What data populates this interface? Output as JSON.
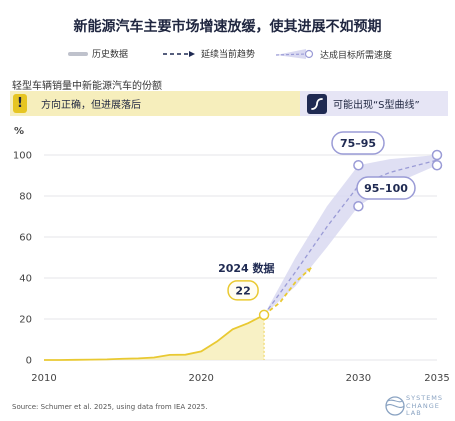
{
  "header": {
    "title": "新能源汽车主要市场增速放缓，使其进展不如预期"
  },
  "legend": {
    "historical": "历史数据",
    "trend": "延续当前趋势",
    "required": "达成目标所需速度"
  },
  "subtitle": "轻型车辆销量中新能源汽车的份额",
  "banners": {
    "left_icon": "!",
    "left_text": "方向正确，但进展落后",
    "right_text": "可能出现“S型曲线”",
    "right_icon": "s-curve-icon"
  },
  "annotations": {
    "data_year_label": "2024 数据",
    "data_value_label": "22",
    "range_2030": "75–95",
    "range_2035": "95–100"
  },
  "footer": {
    "source": "Source: Schumer et al. 2025, using data from IEA 2025.",
    "logo_lines": [
      "SYSTEMS",
      "CHANGE",
      "LAB"
    ]
  },
  "colors": {
    "historical": "#e9c932",
    "trend": "#9a9bd6",
    "band": "#d9d9f1",
    "accent": "#1f2a52"
  },
  "chart_data": {
    "type": "line",
    "title": "轻型车辆销量中新能源汽车的份额",
    "ylabel": "%",
    "xlim": [
      2010,
      2035
    ],
    "ylim": [
      0,
      100
    ],
    "xticks": [
      2010,
      2020,
      2030,
      2035
    ],
    "yticks": [
      0,
      20,
      40,
      60,
      80,
      100
    ],
    "grid": true,
    "series": [
      {
        "name": "历史数据",
        "x": [
          2010,
          2011,
          2012,
          2013,
          2014,
          2015,
          2016,
          2017,
          2018,
          2019,
          2020,
          2021,
          2022,
          2023,
          2024
        ],
        "values": [
          0,
          0,
          0.1,
          0.2,
          0.3,
          0.6,
          0.8,
          1.2,
          2.5,
          2.6,
          4.2,
          9,
          15,
          18,
          22
        ]
      },
      {
        "name": "延续当前趋势",
        "x": [
          2024,
          2025,
          2026,
          2027
        ],
        "values": [
          22,
          28,
          38,
          45
        ]
      },
      {
        "name": "达成目标所需速度",
        "x": [
          2024,
          2026,
          2028,
          2030,
          2032,
          2035
        ],
        "lower": [
          22,
          36,
          55,
          75,
          85,
          95
        ],
        "upper": [
          22,
          50,
          75,
          95,
          98,
          100
        ]
      }
    ],
    "points": [
      {
        "x": 2024,
        "y": 22
      },
      {
        "x": 2030,
        "y": 95
      },
      {
        "x": 2030,
        "y": 75
      },
      {
        "x": 2035,
        "y": 100
      },
      {
        "x": 2035,
        "y": 95
      }
    ]
  }
}
